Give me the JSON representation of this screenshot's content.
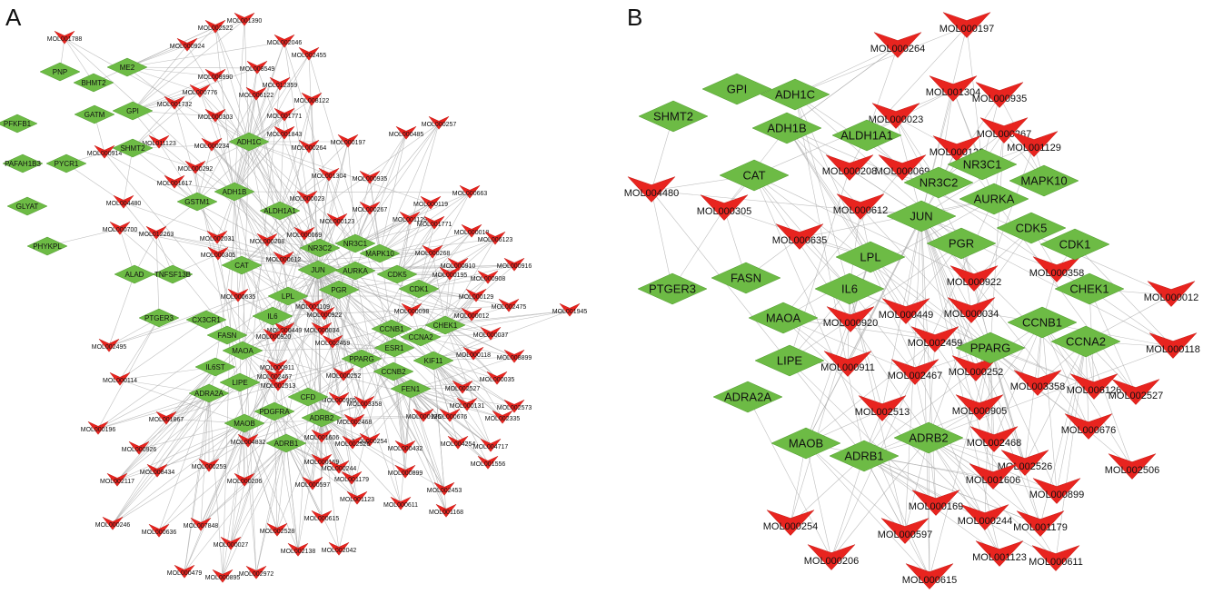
{
  "colors": {
    "target": "#6dbb45",
    "compound": "#e8241f",
    "edge": "#a9a9a9",
    "text": "#111111"
  },
  "node_shapes": {
    "target": "diamond",
    "compound": "inverted-v"
  },
  "panels": [
    {
      "label": "A",
      "targets": [
        "PNP",
        "ME2",
        "BHMT2",
        "GATM",
        "GPI",
        "PFKFB1",
        "SHMT2",
        "PAFAH1B3",
        "PYCR1",
        "ADH1C",
        "GLYAT",
        "ADH1B",
        "GSTM1",
        "ALDH1A1",
        "PHYKPL",
        "ALAD",
        "TNFSF13B",
        "CAT",
        "NR3C1",
        "NR3C2",
        "MAPK10",
        "JUN",
        "AURKA",
        "CDK5",
        "PGR",
        "CDK1",
        "LPL",
        "PTGER3",
        "CX3CR1",
        "IL6",
        "CCNB1",
        "CHEK1",
        "FASN",
        "MAOA",
        "ESR1",
        "CCNA2",
        "IL6ST",
        "PPARG",
        "KIF11",
        "LIPE",
        "CCNB2",
        "FEN1",
        "ADRA2A",
        "CFD",
        "MAOB",
        "PDGFRA",
        "ADRB2",
        "ADRB1"
      ],
      "compounds": [
        "MOL001788",
        "MOL001390",
        "MOL002522",
        "MOL000924",
        "MOL002046",
        "MOL008549",
        "MOL002455",
        "MOL008990",
        "MOL000776",
        "MOL012359",
        "MOL001732",
        "MOL006122",
        "MOL008122",
        "MOL000303",
        "MOL001771",
        "MOL001843",
        "MOL000257",
        "MOL000197",
        "MOL000485",
        "MOL011123",
        "MOL000234",
        "MOL000264",
        "MOL000914",
        "MOL000292",
        "MOL004480",
        "MOL001617",
        "MOL001304",
        "MOL000935",
        "MOL000119",
        "MOL000663",
        "MOL000023",
        "MOL000700",
        "MOL012263",
        "MOL000267",
        "MOL001129",
        "MOL001771",
        "MOL000018",
        "MOL002031",
        "MOL000208",
        "MOL000069",
        "MOL000123",
        "MOL006123",
        "MOL000305",
        "MOL000612",
        "MOL000268",
        "MOL000910",
        "MOL000916",
        "MOL000195",
        "MOL000908",
        "MOL000635",
        "MOL001109",
        "MOL000922",
        "MOL000098",
        "MOL000129",
        "MOL002475",
        "MOL001945",
        "MOL000449",
        "MOL000034",
        "MOL000012",
        "MOL000037",
        "MOL002495",
        "MOL000920",
        "MOL002459",
        "MOL000118",
        "MOL008899",
        "MOL000114",
        "MOL000911",
        "MOL002467",
        "MOL000252",
        "MOL002527",
        "MOL000035",
        "MOL002513",
        "MOL000905",
        "MOL003358",
        "MOL000131",
        "MOL002573",
        "MOL000196",
        "MOL001867",
        "MOL000126",
        "MOL000676",
        "MOL002335",
        "MOL000926",
        "MOL004832",
        "MOL002468",
        "MOL000254",
        "MOL004254",
        "MOL004717",
        "MOL000259",
        "MOL001606",
        "MOL002526",
        "MOL000432",
        "MOL001556",
        "MOL002117",
        "MOL008434",
        "MOL000169",
        "MOL000244",
        "MOL001179",
        "MOL000899",
        "MOL002453",
        "MOL000206",
        "MOL000597",
        "MOL001123",
        "MOL000611",
        "MOL001168",
        "MOL000246",
        "MOL000636",
        "MOL007848",
        "MOL002528",
        "MOL000615",
        "MOL000027",
        "MOL002138",
        "MOL002042",
        "MOL000479",
        "MOL000895",
        "MOL002972"
      ]
    },
    {
      "label": "B",
      "targets": [
        "ADH1C",
        "GPI",
        "ADH1B",
        "SHMT2",
        "ALDH1A1",
        "NR3C1",
        "CAT",
        "NR3C2",
        "MAPK10",
        "AURKA",
        "JUN",
        "CDK5",
        "PGR",
        "CDK1",
        "LPL",
        "FASN",
        "IL6",
        "CHEK1",
        "PTGER3",
        "MAOA",
        "CCNB1",
        "PPARG",
        "CCNA2",
        "LIPE",
        "ADRA2A",
        "MAOB",
        "ADRB2",
        "ADRB1"
      ],
      "compounds": [
        "MOL000197",
        "MOL000264",
        "MOL001304",
        "MOL000935",
        "MOL000023",
        "MOL000267",
        "MOL001129",
        "MOL000123",
        "MOL000208",
        "MOL000069",
        "MOL004480",
        "MOL000305",
        "MOL000612",
        "MOL000635",
        "MOL000358",
        "MOL000012",
        "MOL000922",
        "MOL000034",
        "MOL000449",
        "MOL000920",
        "MOL000118",
        "MOL002459",
        "MOL000911",
        "MOL002467",
        "MOL000252",
        "MOL003358",
        "MOL006126",
        "MOL002527",
        "MOL002513",
        "MOL000905",
        "MOL000676",
        "MOL002468",
        "MOL002526",
        "MOL002506",
        "MOL001606",
        "MOL000899",
        "MOL000169",
        "MOL000244",
        "MOL001179",
        "MOL000254",
        "MOL000597",
        "MOL000206",
        "MOL001123",
        "MOL000611",
        "MOL000615"
      ]
    }
  ]
}
